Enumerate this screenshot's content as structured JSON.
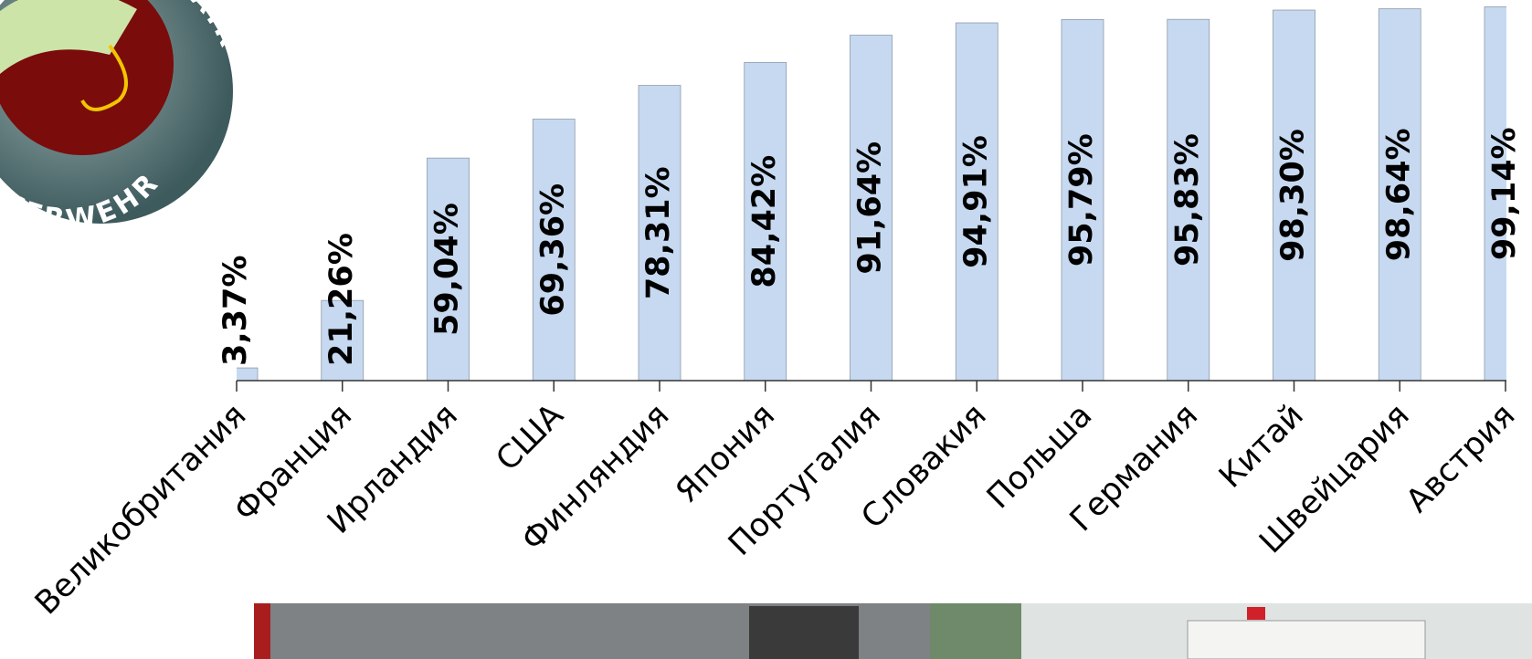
{
  "chart_data": {
    "type": "bar",
    "categories": [
      "Великобритания",
      "Франция",
      "Ирландия",
      "США",
      "Финляндия",
      "Япония",
      "Португалия",
      "Словакия",
      "Польша",
      "Германия",
      "Китай",
      "Швейцария",
      "Австрия"
    ],
    "values": [
      3.37,
      21.26,
      59.04,
      69.36,
      78.31,
      84.42,
      91.64,
      94.91,
      95.79,
      95.83,
      98.3,
      98.64,
      99.14
    ],
    "value_labels": [
      "3,37%",
      "21,26%",
      "59,04%",
      "69,36%",
      "78,31%",
      "84,42%",
      "91,64%",
      "94,91%",
      "95,79%",
      "95,83%",
      "98,30%",
      "98,64%",
      "99,14%"
    ],
    "color": "#c6d9f1",
    "ylim": [
      0,
      100
    ]
  },
  "logo": {
    "top_text": "D FAIR",
    "bottom_text": "EUERWEHR"
  }
}
